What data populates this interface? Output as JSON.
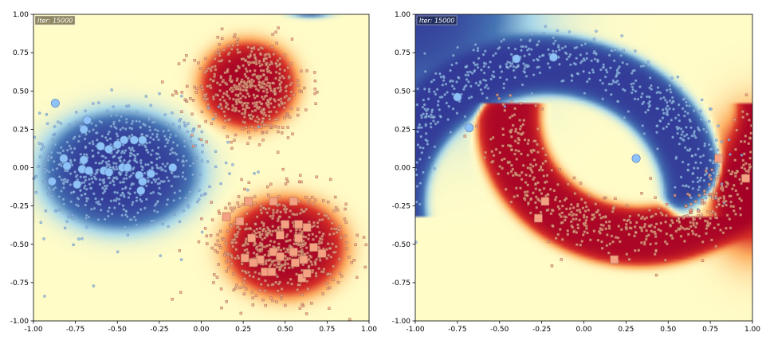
{
  "colors": {
    "blue": "#2b3b97",
    "light": "#fdfbc2",
    "red": "#c01a26",
    "blue_pt": "#8fbcf0",
    "red_pt": "#f0a184"
  },
  "chart_data": [
    {
      "type": "heatmap",
      "description_type": "decision-boundary scatter",
      "iter_label": "Iter: 15000",
      "iter_box_color": "#7a7250",
      "xlim": [
        -1.0,
        1.0
      ],
      "ylim": [
        -1.0,
        1.0
      ],
      "xticks": [
        "-1.00",
        "-0.75",
        "-0.50",
        "-0.25",
        "0.00",
        "0.25",
        "0.50",
        "0.75",
        "1.00"
      ],
      "yticks": [
        "1.00",
        "0.75",
        "0.50",
        "0.25",
        "0.00",
        "-0.25",
        "-0.50",
        "-0.75",
        "-1.00"
      ],
      "clusters": [
        {
          "class": "blue",
          "center": [
            -0.5,
            0.0
          ],
          "spread": [
            0.28,
            0.2
          ],
          "count": 700
        },
        {
          "class": "red",
          "center": [
            0.3,
            0.52
          ],
          "spread": [
            0.17,
            0.16
          ],
          "count": 520
        },
        {
          "class": "red",
          "center": [
            0.47,
            -0.5
          ],
          "spread": [
            0.2,
            0.17
          ],
          "count": 620
        }
      ],
      "field": [
        {
          "center": [
            -0.48,
            -0.02
          ],
          "radius": [
            0.4,
            0.33
          ],
          "weight": -1.35
        },
        {
          "center": [
            0.28,
            0.54
          ],
          "radius": [
            0.24,
            0.24
          ],
          "weight": 1.35
        },
        {
          "center": [
            0.5,
            -0.52
          ],
          "radius": [
            0.3,
            0.27
          ],
          "weight": 1.35
        },
        {
          "center": [
            0.65,
            1.05
          ],
          "radius": [
            0.15,
            0.06
          ],
          "weight": -0.9
        }
      ],
      "blue_points": [
        [
          -0.87,
          0.42
        ],
        [
          -0.68,
          0.31
        ],
        [
          -0.7,
          0.25
        ],
        [
          -0.82,
          0.06
        ],
        [
          -0.8,
          0.01
        ],
        [
          -0.7,
          0.05
        ],
        [
          -0.71,
          -0.01
        ],
        [
          -0.67,
          -0.02
        ],
        [
          -0.6,
          0.14
        ],
        [
          -0.55,
          0.12
        ],
        [
          -0.5,
          0.15
        ],
        [
          -0.46,
          0.18
        ],
        [
          -0.4,
          0.18
        ],
        [
          -0.35,
          0.18
        ],
        [
          -0.58,
          -0.02
        ],
        [
          -0.55,
          -0.03
        ],
        [
          -0.47,
          0.0
        ],
        [
          -0.44,
          0.0
        ],
        [
          -0.37,
          -0.05
        ],
        [
          -0.35,
          -0.09
        ],
        [
          -0.3,
          -0.04
        ],
        [
          -0.17,
          0.0
        ],
        [
          -0.89,
          -0.09
        ],
        [
          -0.74,
          -0.11
        ],
        [
          -0.36,
          -0.15
        ]
      ],
      "red_points": [
        [
          0.15,
          -0.32
        ],
        [
          0.28,
          -0.22
        ],
        [
          0.23,
          -0.35
        ],
        [
          0.3,
          -0.46
        ],
        [
          0.43,
          -0.22
        ],
        [
          0.55,
          -0.22
        ],
        [
          0.5,
          -0.37
        ],
        [
          0.58,
          -0.37
        ],
        [
          0.63,
          -0.39
        ],
        [
          0.58,
          -0.46
        ],
        [
          0.47,
          -0.44
        ],
        [
          0.43,
          -0.55
        ],
        [
          0.55,
          -0.55
        ],
        [
          0.67,
          -0.52
        ],
        [
          0.72,
          -0.56
        ],
        [
          0.47,
          -0.58
        ],
        [
          0.35,
          -0.6
        ],
        [
          0.26,
          -0.59
        ],
        [
          0.31,
          -0.62
        ],
        [
          0.56,
          -0.62
        ],
        [
          0.61,
          -0.6
        ],
        [
          0.38,
          -0.68
        ],
        [
          0.42,
          -0.68
        ],
        [
          0.6,
          -0.72
        ],
        [
          0.63,
          -0.69
        ]
      ]
    },
    {
      "type": "heatmap",
      "description_type": "decision-boundary scatter",
      "iter_label": "Iter: 15000",
      "iter_box_color": "#1f2a52",
      "xlim": [
        -1.0,
        1.0
      ],
      "ylim": [
        -1.0,
        1.0
      ],
      "xticks": [
        "-1.00",
        "-0.75",
        "-0.50",
        "-0.25",
        "0.00",
        "0.25",
        "0.50",
        "0.75",
        "1.00"
      ],
      "yticks": [
        "1.00",
        "0.75",
        "0.50",
        "0.25",
        "0.00",
        "-0.25",
        "-0.50",
        "-0.75",
        "-1.00"
      ],
      "moons": [
        {
          "class": "blue",
          "center": [
            -0.2,
            -0.2
          ],
          "radius": 0.92,
          "angle_range": [
            0,
            180
          ],
          "noise": 0.085,
          "count": 650
        },
        {
          "class": "red",
          "center": [
            0.32,
            0.33
          ],
          "radius": 0.75,
          "angle_range": [
            180,
            360
          ],
          "noise": 0.085,
          "count": 650
        }
      ],
      "band": {
        "blue_center": [
          -0.23,
          -0.23
        ],
        "blue_radius": 0.9,
        "red_center": [
          0.33,
          0.33
        ],
        "red_radius": 0.78,
        "half_width": 0.17,
        "bg_blue_corner": [
          -1.0,
          1.0
        ]
      },
      "blue_points": [
        [
          -0.75,
          0.46
        ],
        [
          -0.68,
          0.26
        ],
        [
          -0.4,
          0.71
        ],
        [
          -0.18,
          0.72
        ],
        [
          0.31,
          0.06
        ]
      ],
      "red_points": [
        [
          -0.23,
          -0.22
        ],
        [
          -0.27,
          -0.33
        ],
        [
          0.18,
          -0.6
        ],
        [
          0.8,
          0.06
        ],
        [
          0.96,
          -0.07
        ]
      ]
    }
  ]
}
